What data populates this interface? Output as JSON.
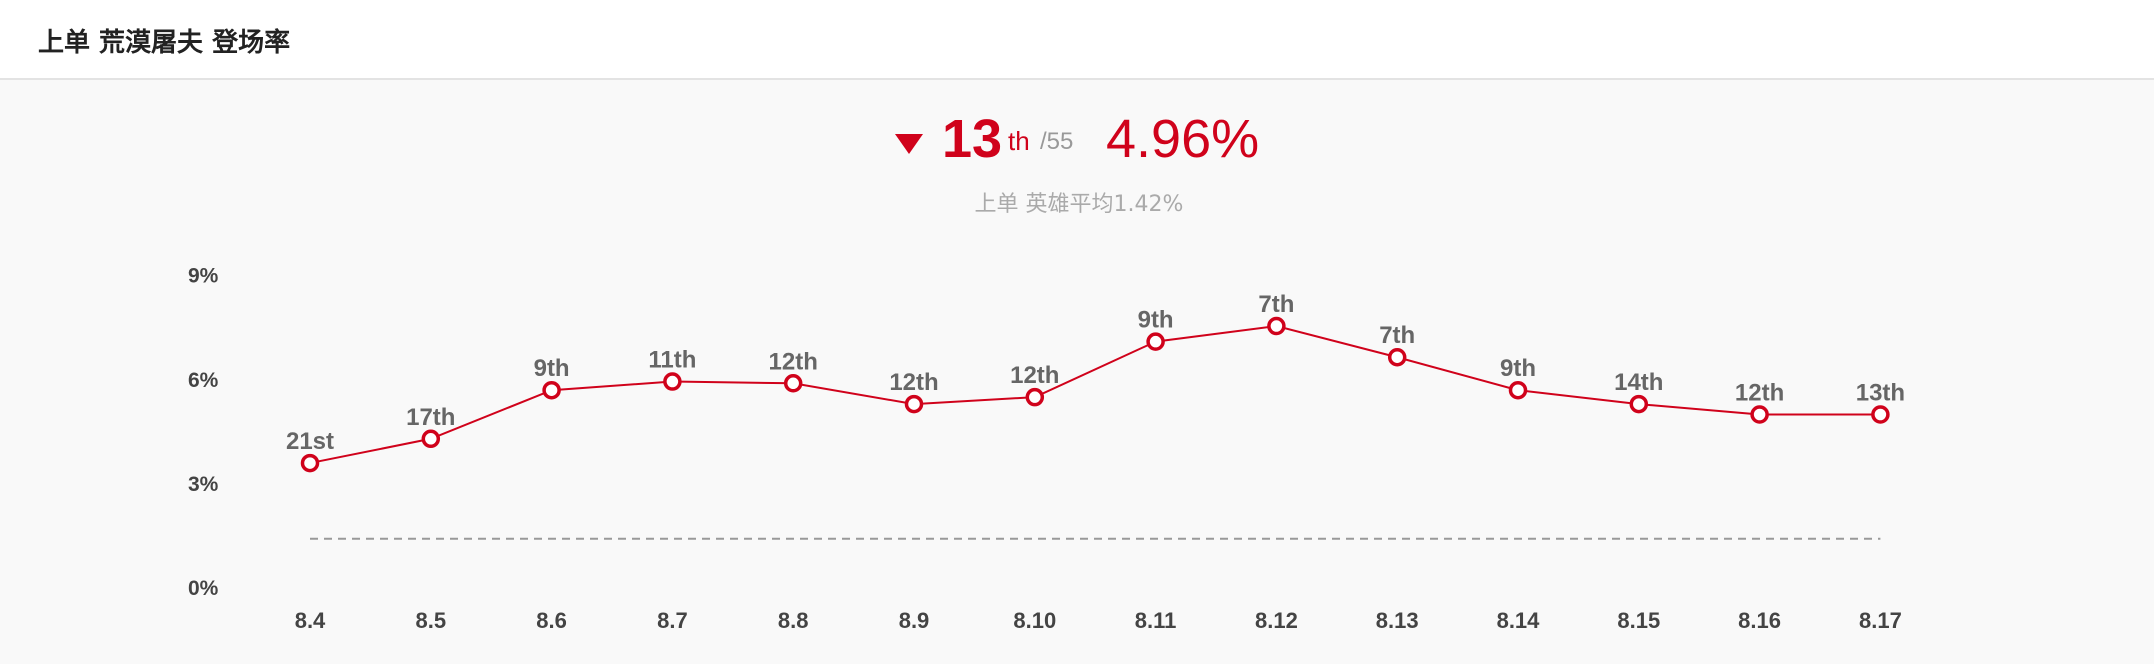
{
  "header": {
    "title": "上单 荒漠屠夫 登场率"
  },
  "summary": {
    "rank": "13",
    "rank_suffix": "th",
    "rank_total": "/55",
    "rate": "4.96%",
    "avg_label": "上单 英雄平均",
    "avg_value": "1.42%"
  },
  "colors": {
    "accent": "#d0021b",
    "avg_line": "#999999"
  },
  "chart_data": {
    "type": "line",
    "title": "",
    "xlabel": "",
    "ylabel": "",
    "ylim": [
      0,
      9
    ],
    "y_ticks": [
      "0%",
      "3%",
      "6%",
      "9%"
    ],
    "y_tick_values": [
      0,
      3,
      6,
      9
    ],
    "categories": [
      "8.4",
      "8.5",
      "8.6",
      "8.7",
      "8.8",
      "8.9",
      "8.10",
      "8.11",
      "8.12",
      "8.13",
      "8.14",
      "8.15",
      "8.16",
      "8.17"
    ],
    "series": [
      {
        "name": "登场率",
        "values": [
          3.6,
          4.3,
          5.7,
          5.95,
          5.9,
          5.3,
          5.5,
          7.1,
          7.55,
          6.65,
          5.7,
          5.3,
          5.0,
          5.0
        ],
        "labels": [
          "21st",
          "17th",
          "9th",
          "11th",
          "12th",
          "12th",
          "12th",
          "9th",
          "7th",
          "7th",
          "9th",
          "14th",
          "12th",
          "13th"
        ]
      }
    ],
    "reference_line": {
      "name": "上单 英雄平均",
      "value": 1.42
    },
    "grid": false,
    "legend": "none"
  }
}
